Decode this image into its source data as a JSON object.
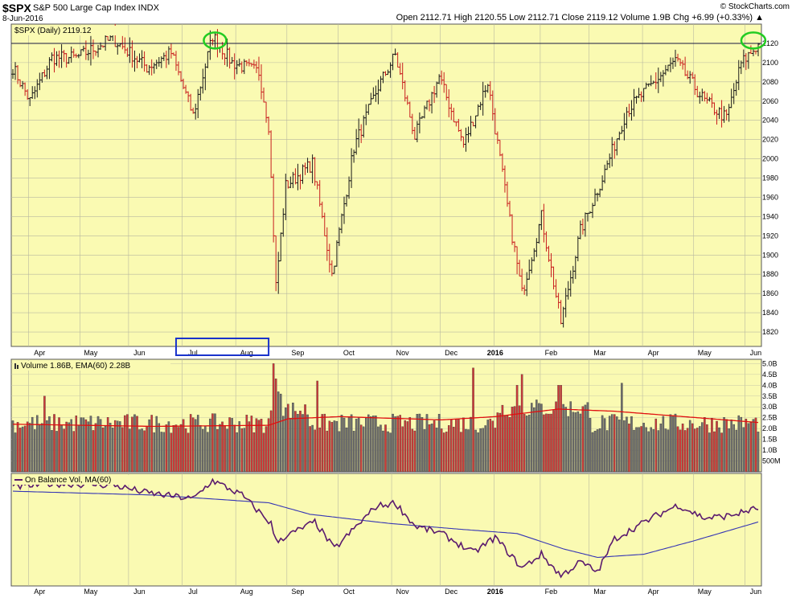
{
  "header": {
    "ticker": "$SPX",
    "company": "S&P 500 Large Cap Index  INDX",
    "date": "8-Jun-2016",
    "brand": "© StockCharts.com",
    "ohlc": "Open 2112.71  High 2120.55  Low 2112.71  Close 2119.12  Volume 1.9B  Chg +6.99 (+0.33%) ▲"
  },
  "colors": {
    "panel_bg": "#fafab2",
    "up": "#1a1a1a",
    "down": "#c81e1e",
    "vol_up": "#6e6e6e",
    "vol_down": "#cd3a3a",
    "ema_line": "#e01010",
    "obv_line": "#5a1a6e",
    "obv_ma": "#3535b5",
    "highlight_circle": "#22cc22",
    "highlight_box": "#1a33cc"
  },
  "chart_data": [
    {
      "type": "ohlc",
      "title": "$SPX (Daily) 2119.12",
      "x_labels": [
        "Apr",
        "May",
        "Jun",
        "Jul",
        "Aug",
        "Sep",
        "Oct",
        "Nov",
        "Dec",
        "2016",
        "Feb",
        "Mar",
        "Apr",
        "May",
        "Jun"
      ],
      "y_ticks": [
        1820,
        1840,
        1860,
        1880,
        1900,
        1920,
        1940,
        1960,
        1980,
        2000,
        2020,
        2040,
        2060,
        2080,
        2100,
        2120
      ],
      "ylim": [
        1805,
        2140
      ],
      "resistance_level": 2120,
      "close_anchors": [
        [
          "2015-03-23",
          2095
        ],
        [
          "2015-04-01",
          2060
        ],
        [
          "2015-04-15",
          2105
        ],
        [
          "2015-04-29",
          2105
        ],
        [
          "2015-05-20",
          2125
        ],
        [
          "2015-06-10",
          2095
        ],
        [
          "2015-06-24",
          2110
        ],
        [
          "2015-07-08",
          2045
        ],
        [
          "2015-07-20",
          2128
        ],
        [
          "2015-07-30",
          2100
        ],
        [
          "2015-08-14",
          2090
        ],
        [
          "2015-08-20",
          2035
        ],
        [
          "2015-08-25",
          1868
        ],
        [
          "2015-08-31",
          1972
        ],
        [
          "2015-09-16",
          1995
        ],
        [
          "2015-09-28",
          1880
        ],
        [
          "2015-10-09",
          2012
        ],
        [
          "2015-10-23",
          2075
        ],
        [
          "2015-11-03",
          2108
        ],
        [
          "2015-11-13",
          2023
        ],
        [
          "2015-11-30",
          2085
        ],
        [
          "2015-12-14",
          2015
        ],
        [
          "2015-12-29",
          2080
        ],
        [
          "2016-01-12",
          1935
        ],
        [
          "2016-01-20",
          1860
        ],
        [
          "2016-02-01",
          1940
        ],
        [
          "2016-02-11",
          1830
        ],
        [
          "2016-02-24",
          1925
        ],
        [
          "2016-03-08",
          1980
        ],
        [
          "2016-03-22",
          2050
        ],
        [
          "2016-04-20",
          2102
        ],
        [
          "2016-05-06",
          2060
        ],
        [
          "2016-05-19",
          2042
        ],
        [
          "2016-05-27",
          2099
        ],
        [
          "2016-06-08",
          2119
        ]
      ]
    },
    {
      "type": "bar",
      "title": "Volume 1.86B, EMA(60) 2.28B",
      "y_ticks": [
        "5.0B",
        "4.5B",
        "4.0B",
        "3.5B",
        "3.0B",
        "2.5B",
        "2.0B",
        "1.5B",
        "1.0B",
        "500M"
      ],
      "ylim": [
        0,
        5.2
      ],
      "baseline_billions": 2.15,
      "spikes": [
        [
          "2015-08-24",
          5.0
        ],
        [
          "2015-08-25",
          4.3
        ],
        [
          "2015-08-26",
          3.7
        ],
        [
          "2015-08-27",
          3.6
        ],
        [
          "2015-09-18",
          4.2
        ],
        [
          "2015-12-18",
          4.8
        ],
        [
          "2016-01-15",
          4.0
        ],
        [
          "2016-01-20",
          4.5
        ],
        [
          "2016-02-10",
          4.0
        ],
        [
          "2016-02-11",
          4.0
        ],
        [
          "2015-04-10",
          3.5
        ],
        [
          "2016-03-18",
          4.1
        ]
      ],
      "ema_anchors": [
        [
          "2015-03-23",
          2.2
        ],
        [
          "2015-06-15",
          2.1
        ],
        [
          "2015-08-20",
          2.15
        ],
        [
          "2015-09-01",
          2.45
        ],
        [
          "2015-10-01",
          2.55
        ],
        [
          "2015-12-01",
          2.4
        ],
        [
          "2016-01-04",
          2.55
        ],
        [
          "2016-02-10",
          2.9
        ],
        [
          "2016-03-15",
          2.8
        ],
        [
          "2016-06-08",
          2.28
        ]
      ]
    },
    {
      "type": "line",
      "title": "On Balance Vol, MA(60)",
      "obv_anchors": [
        [
          "2015-03-23",
          25
        ],
        [
          "2015-04-15",
          30
        ],
        [
          "2015-05-20",
          28
        ],
        [
          "2015-06-10",
          18
        ],
        [
          "2015-07-08",
          10
        ],
        [
          "2015-07-20",
          34
        ],
        [
          "2015-08-05",
          15
        ],
        [
          "2015-08-21",
          -22
        ],
        [
          "2015-08-25",
          -45
        ],
        [
          "2015-09-17",
          -20
        ],
        [
          "2015-09-29",
          -55
        ],
        [
          "2015-10-22",
          0
        ],
        [
          "2015-11-03",
          5
        ],
        [
          "2015-11-13",
          -25
        ],
        [
          "2015-12-01",
          -35
        ],
        [
          "2015-12-18",
          -60
        ],
        [
          "2016-01-04",
          -40
        ],
        [
          "2016-01-20",
          -80
        ],
        [
          "2016-02-01",
          -62
        ],
        [
          "2016-02-11",
          -90
        ],
        [
          "2016-02-24",
          -72
        ],
        [
          "2016-03-04",
          -85
        ],
        [
          "2016-03-15",
          -42
        ],
        [
          "2016-04-08",
          -12
        ],
        [
          "2016-04-21",
          2
        ],
        [
          "2016-05-06",
          -15
        ],
        [
          "2016-05-20",
          -12
        ],
        [
          "2016-06-08",
          -2
        ]
      ],
      "ma_anchors": [
        [
          "2015-03-23",
          20
        ],
        [
          "2015-06-15",
          15
        ],
        [
          "2015-08-20",
          5
        ],
        [
          "2015-09-15",
          -10
        ],
        [
          "2015-11-01",
          -22
        ],
        [
          "2015-12-15",
          -30
        ],
        [
          "2016-01-15",
          -35
        ],
        [
          "2016-02-15",
          -55
        ],
        [
          "2016-03-04",
          -66
        ],
        [
          "2016-04-01",
          -62
        ],
        [
          "2016-05-01",
          -45
        ],
        [
          "2016-06-08",
          -20
        ]
      ]
    }
  ]
}
